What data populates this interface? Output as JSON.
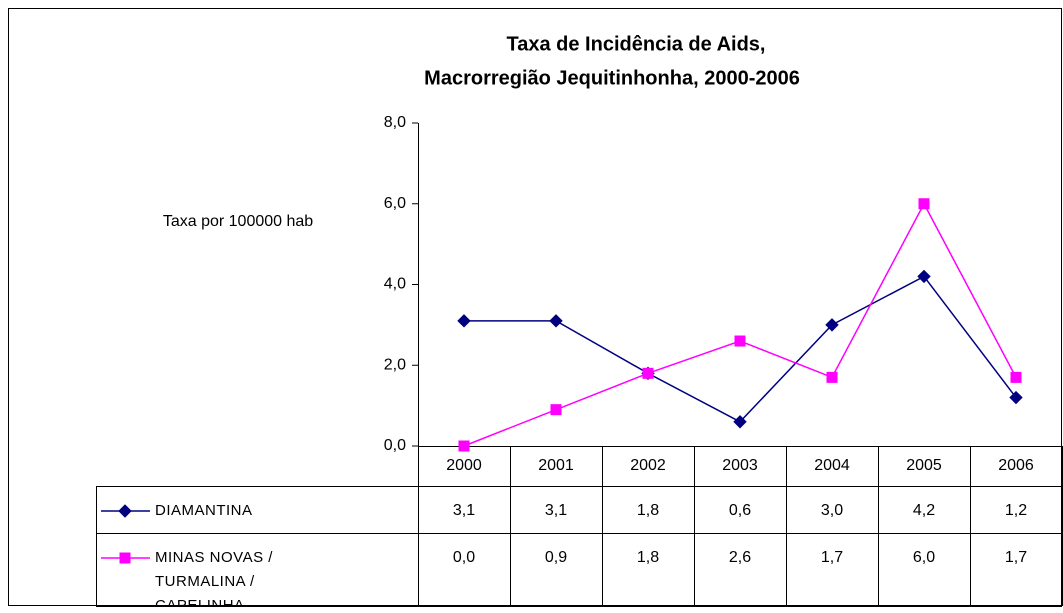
{
  "chart_data": {
    "type": "line",
    "title": [
      "Taxa de Incidência de Aids,",
      "Macrorregião Jequitinhonha, 2000-2006"
    ],
    "y_label": "Taxa por 100000 hab",
    "categories": [
      "2000",
      "2001",
      "2002",
      "2003",
      "2004",
      "2005",
      "2006"
    ],
    "series": [
      {
        "name": "DIAMANTINA",
        "color": "#000080",
        "marker": "diamond",
        "values": [
          3.1,
          3.1,
          1.8,
          0.6,
          3.0,
          4.2,
          1.2
        ],
        "value_labels": [
          "3,1",
          "3,1",
          "1,8",
          "0,6",
          "3,0",
          "4,2",
          "1,2"
        ]
      },
      {
        "name": "MINAS NOVAS / TURMALINA / CAPELINHA",
        "color": "#ff00ff",
        "marker": "square",
        "values": [
          0.0,
          0.9,
          1.8,
          2.6,
          1.7,
          6.0,
          1.7
        ],
        "value_labels": [
          "0,0",
          "0,9",
          "1,8",
          "2,6",
          "1,7",
          "6,0",
          "1,7"
        ]
      }
    ],
    "ylim": [
      0,
      8
    ],
    "yticks": [
      {
        "value": 0,
        "label": "0,0"
      },
      {
        "value": 2,
        "label": "2,0"
      },
      {
        "value": 4,
        "label": "4,0"
      },
      {
        "value": 6,
        "label": "6,0"
      },
      {
        "value": 8,
        "label": "8,0"
      }
    ],
    "grid": false
  }
}
